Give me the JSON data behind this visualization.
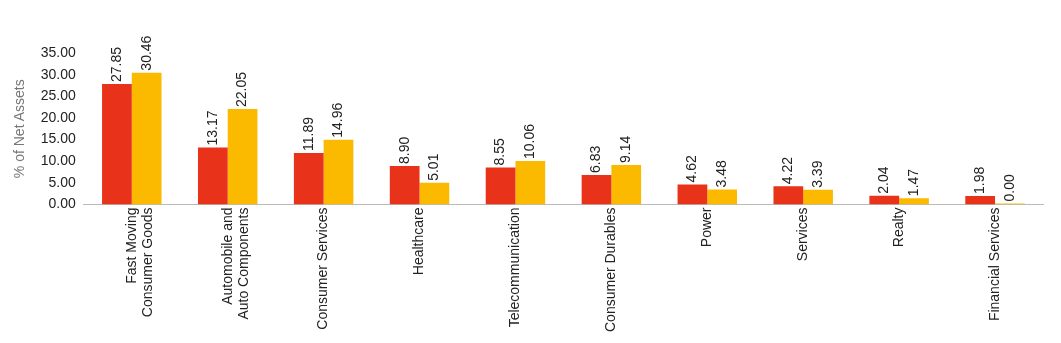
{
  "chart_data": {
    "type": "bar",
    "ylabel": "% of Net Assets",
    "categories": [
      "Fast Moving Consumer Goods",
      "Automobile and Auto Components",
      "Consumer Services",
      "Healthcare",
      "Telecommunication",
      "Consumer Durables",
      "Power",
      "Services",
      "Realty",
      "Financial Services"
    ],
    "series": [
      {
        "color": "#e8321a",
        "values": [
          27.85,
          13.17,
          11.89,
          8.9,
          8.55,
          6.83,
          4.62,
          4.22,
          2.04,
          1.98
        ],
        "value_labels": [
          "27.85",
          "13.17",
          "11.89",
          "8.90",
          "8.55",
          "6.83",
          "4.62",
          "4.22",
          "2.04",
          "1.98"
        ]
      },
      {
        "color": "#fbb900",
        "values": [
          30.46,
          22.05,
          14.96,
          5.01,
          10.06,
          9.14,
          3.48,
          3.39,
          1.47,
          0.0
        ],
        "value_labels": [
          "30.46",
          "22.05",
          "14.96",
          "5.01",
          "10.06",
          "9.14",
          "3.48",
          "3.39",
          "1.47",
          "0.00"
        ]
      }
    ],
    "ylim": [
      0,
      35
    ],
    "yticks": [
      {
        "value": 0,
        "label": "0.00"
      },
      {
        "value": 5,
        "label": "5.00"
      },
      {
        "value": 10,
        "label": "10.00"
      },
      {
        "value": 15,
        "label": "15.00"
      },
      {
        "value": 20,
        "label": "20.00"
      },
      {
        "value": 25,
        "label": "25.00"
      },
      {
        "value": 30,
        "label": "30.00"
      },
      {
        "value": 35,
        "label": "35.00"
      }
    ],
    "grid": false,
    "legend": false
  }
}
